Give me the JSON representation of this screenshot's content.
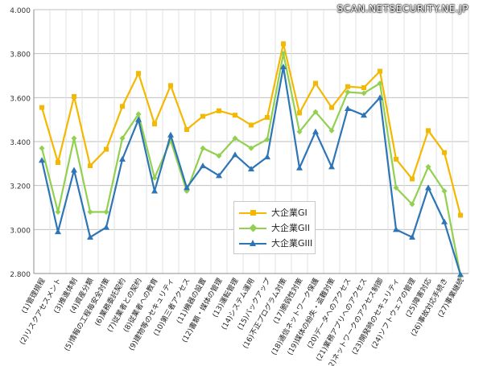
{
  "watermark": "SCAN.NETSECURITY.NE.JP",
  "chart_data": {
    "type": "line",
    "ylim": [
      2.8,
      4.0
    ],
    "yticks": [
      "4.000",
      "3.800",
      "3.600",
      "3.400",
      "3.200",
      "3.000",
      "2.800"
    ],
    "ytick_values": [
      4.0,
      3.8,
      3.6,
      3.4,
      3.2,
      3.0,
      2.8
    ],
    "categories": [
      "(1)管理規程",
      "(2)リスクアセスメント",
      "(3)推進体制",
      "(4)資産分類",
      "(5)情報の工程毎安全対策",
      "(6)業務委託契約",
      "(7)従業者との契約",
      "(8)従業者への教育",
      "(9)建物等のセキュリティ",
      "(10)第三者アクセス",
      "(11)機器の設置",
      "(12)書類・媒体の管理",
      "(13)運転管理",
      "(14)システム運用",
      "(15)バックアップ",
      "(16)不正プログラム対策",
      "(17)脆弱性対策",
      "(18)通信ネットワーク保護",
      "(19)媒体の紛失・盗難対策",
      "(20)データへのアクセス",
      "(21)業務アプリへのアクセス",
      "(22)ネットワークのアクセス制御",
      "(23)開発時のセキュリティ",
      "(24)ソフトウェアの管理",
      "(25)障害対応",
      "(26)事故対応手続き",
      "(27)事業継続"
    ],
    "series": [
      {
        "name": "大企業GI",
        "color": "#f5b800",
        "marker": "square",
        "values": [
          3.555,
          3.305,
          3.605,
          3.29,
          3.365,
          3.56,
          3.71,
          3.48,
          3.655,
          3.455,
          3.515,
          3.54,
          3.52,
          3.475,
          3.51,
          3.845,
          3.53,
          3.665,
          3.555,
          3.65,
          3.645,
          3.72,
          3.32,
          3.23,
          3.45,
          3.35,
          3.065
        ]
      },
      {
        "name": "大企業GII",
        "color": "#92d050",
        "marker": "diamond",
        "values": [
          3.37,
          3.08,
          3.415,
          3.08,
          3.08,
          3.415,
          3.525,
          3.235,
          3.405,
          3.175,
          3.37,
          3.335,
          3.415,
          3.37,
          3.41,
          3.8,
          3.445,
          3.535,
          3.45,
          3.625,
          3.62,
          3.665,
          3.19,
          3.115,
          3.285,
          3.175,
          2.79
        ]
      },
      {
        "name": "大企業GIII",
        "color": "#2e75b6",
        "marker": "triangle",
        "values": [
          3.315,
          2.99,
          3.27,
          2.965,
          3.01,
          3.32,
          3.5,
          3.175,
          3.43,
          3.19,
          3.29,
          3.245,
          3.34,
          3.275,
          3.33,
          3.74,
          3.28,
          3.445,
          3.285,
          3.55,
          3.52,
          3.6,
          3.0,
          2.965,
          3.19,
          3.035,
          2.795
        ]
      }
    ],
    "grid": true,
    "legend_position": "center"
  }
}
